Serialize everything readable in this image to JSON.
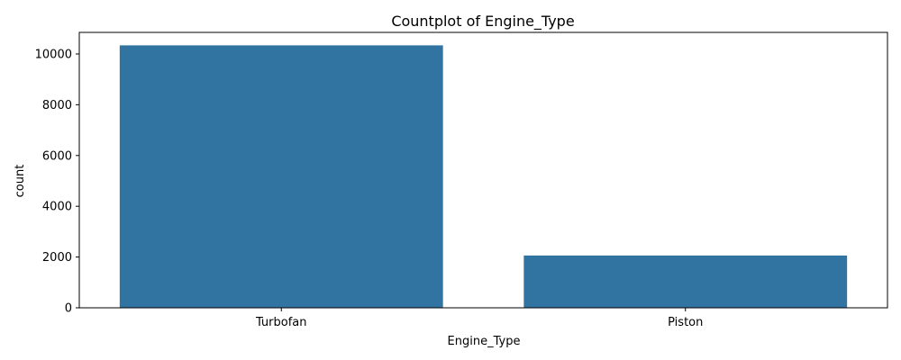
{
  "chart_data": {
    "type": "bar",
    "title": "Countplot of Engine_Type",
    "xlabel": "Engine_Type",
    "ylabel": "count",
    "categories": [
      "Turbofan",
      "Piston"
    ],
    "values": [
      10340,
      2060
    ],
    "ylim": [
      0,
      10850
    ],
    "yticks": [
      0,
      2000,
      4000,
      6000,
      8000,
      10000
    ],
    "grid": false,
    "bar_color": "#3274a1"
  }
}
